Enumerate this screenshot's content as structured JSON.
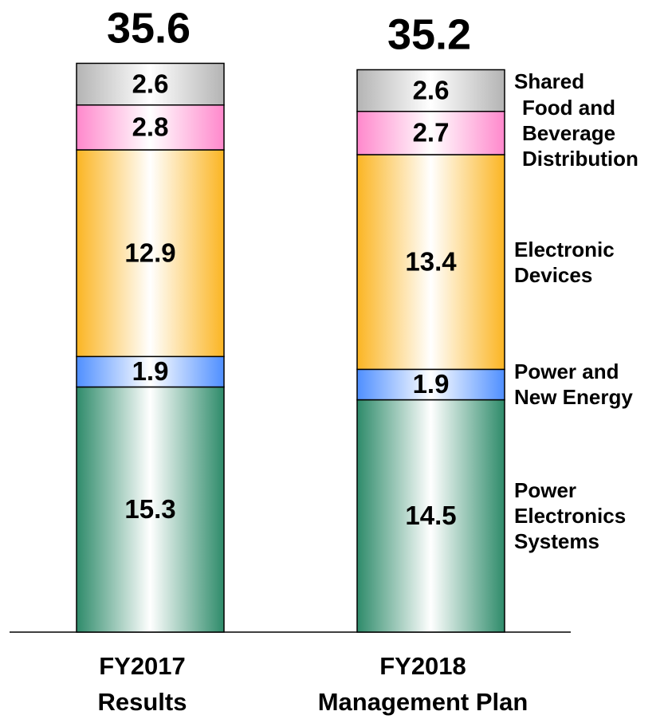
{
  "chart_data": {
    "type": "stacked_bar",
    "categories": [
      [
        "FY2017",
        "Results"
      ],
      [
        "FY2018",
        "Management Plan"
      ]
    ],
    "totals": [
      35.6,
      35.2
    ],
    "series": [
      {
        "name": "Power Electronics Systems",
        "color": "#2e8b6a",
        "values": [
          15.3,
          14.5
        ]
      },
      {
        "name": "Power and New Energy",
        "color": "#4f8fff",
        "values": [
          1.9,
          1.9
        ]
      },
      {
        "name": "Electronic Devices",
        "color": "#fbb523",
        "values": [
          12.9,
          13.4
        ]
      },
      {
        "name": "Food and Beverage Distribution",
        "color": "#ff88cc",
        "values": [
          2.8,
          2.7
        ]
      },
      {
        "name": "Shared",
        "color": "#b4b4b4",
        "values": [
          2.6,
          2.6
        ]
      }
    ],
    "ylim": [
      0,
      36
    ]
  }
}
